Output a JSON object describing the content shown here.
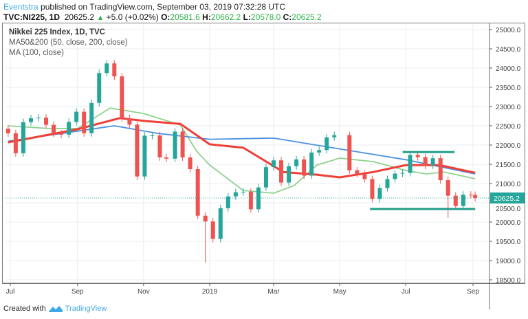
{
  "header": {
    "author": "Eventstra",
    "published": "published on TradingView.com, September 03, 2019 07:32:28 UTC",
    "symbol": "TVC:NI225, 1D",
    "last": "20625.2",
    "change": "+5.0 (+0.02%)",
    "o_label": "O:",
    "o": "20581.6",
    "h_label": "H:",
    "h": "20662.2",
    "l_label": "L:",
    "l": "20578.0",
    "c_label": "C:",
    "c": "20625.2"
  },
  "legend": {
    "title": "Nikkei 225 Index, 1D, TVC",
    "ma1": "MA50&200 (50, close, 200, close)",
    "ma2": "MA (100, close)"
  },
  "footer": {
    "created": "Created with",
    "brand": "TradingView"
  },
  "colors": {
    "up": "#26a69a",
    "down": "#ef5350",
    "ma50": "#8fd18c",
    "ma200": "#4a90e2",
    "ma100": "#ef3e36",
    "lines": "#1e9e86"
  },
  "chart_data": {
    "type": "candlestick",
    "interval": "1D (shown as approximate weekly closes)",
    "price_axis": {
      "min": 18500,
      "max": 25000,
      "step": 500,
      "labels": [
        "25000.0",
        "24500.0",
        "24000.0",
        "23500.0",
        "23000.0",
        "22500.0",
        "22000.0",
        "21500.0",
        "21000.0",
        "20500.0",
        "20000.0",
        "19500.0",
        "19000.0",
        "18500.0"
      ]
    },
    "time_axis": {
      "labels": [
        {
          "label": "Jul",
          "date": "2018-07-01"
        },
        {
          "label": "Sep",
          "date": "2018-09-01"
        },
        {
          "label": "Nov",
          "date": "2018-11-01"
        },
        {
          "label": "2019",
          "date": "2019-01-01"
        },
        {
          "label": "Mar",
          "date": "2019-03-01"
        },
        {
          "label": "May",
          "date": "2019-05-01"
        },
        {
          "label": "Jul",
          "date": "2019-07-01"
        },
        {
          "label": "Sep",
          "date": "2019-09-01"
        }
      ]
    },
    "current_price": "20625.2",
    "dates": [
      "2018-06-29",
      "2018-07-06",
      "2018-07-13",
      "2018-07-20",
      "2018-07-27",
      "2018-08-03",
      "2018-08-10",
      "2018-08-17",
      "2018-08-24",
      "2018-08-31",
      "2018-09-07",
      "2018-09-14",
      "2018-09-21",
      "2018-09-28",
      "2018-10-05",
      "2018-10-12",
      "2018-10-19",
      "2018-10-26",
      "2018-11-02",
      "2018-11-09",
      "2018-11-16",
      "2018-11-22",
      "2018-11-30",
      "2018-12-07",
      "2018-12-14",
      "2018-12-21",
      "2018-12-28",
      "2019-01-04",
      "2019-01-11",
      "2019-01-18",
      "2019-01-25",
      "2019-02-01",
      "2019-02-08",
      "2019-02-15",
      "2019-02-22",
      "2019-03-01",
      "2019-03-08",
      "2019-03-15",
      "2019-03-22",
      "2019-03-29",
      "2019-04-05",
      "2019-04-12",
      "2019-04-19",
      "2019-04-26",
      "2019-05-10",
      "2019-05-17",
      "2019-05-24",
      "2019-05-31",
      "2019-06-07",
      "2019-06-14",
      "2019-06-21",
      "2019-06-28",
      "2019-07-05",
      "2019-07-12",
      "2019-07-19",
      "2019-07-26",
      "2019-08-02",
      "2019-08-09",
      "2019-08-16",
      "2019-08-23",
      "2019-08-30",
      "2019-09-03"
    ],
    "close": [
      22305,
      21788,
      22597,
      22697,
      22712,
      22525,
      22298,
      22270,
      22601,
      22865,
      22307,
      23094,
      23870,
      24120,
      23784,
      22694,
      22532,
      21184,
      22243,
      22250,
      21680,
      21647,
      22351,
      21679,
      21375,
      20166,
      20015,
      19562,
      20360,
      20666,
      20774,
      20788,
      20333,
      20900,
      21426,
      21603,
      21026,
      21451,
      21627,
      21206,
      21807,
      21870,
      22200,
      22259,
      21344,
      21250,
      21117,
      20601,
      20885,
      21117,
      21259,
      21276,
      21746,
      21686,
      21467,
      21658,
      21087,
      20685,
      20418,
      20711,
      20704,
      20625
    ],
    "lows_extreme": [
      {
        "date": "2018-12-26",
        "value": 18948
      },
      {
        "date": "2019-08-06",
        "value": 20110
      }
    ],
    "indicators": {
      "ma200": {
        "dates": [
          "2018-06-29",
          "2018-10-05",
          "2018-11-15",
          "2019-01-01",
          "2019-03-01",
          "2019-05-01",
          "2019-07-01",
          "2019-09-03"
        ],
        "values": [
          22100,
          22500,
          22300,
          22150,
          22180,
          21900,
          21620,
          21250
        ]
      },
      "ma100": {
        "dates": [
          "2018-06-29",
          "2018-09-01",
          "2018-10-10",
          "2018-11-01",
          "2018-12-05",
          "2019-01-01",
          "2019-02-01",
          "2019-03-10",
          "2019-04-10",
          "2019-05-01",
          "2019-06-01",
          "2019-07-01",
          "2019-08-01",
          "2019-09-03"
        ],
        "values": [
          22070,
          22410,
          22700,
          22630,
          22550,
          22020,
          21930,
          21300,
          21230,
          21160,
          21300,
          21480,
          21480,
          21280
        ]
      },
      "ma50": {
        "dates": [
          "2018-06-29",
          "2018-08-05",
          "2018-09-01",
          "2018-10-01",
          "2018-11-01",
          "2018-12-05",
          "2018-12-20",
          "2019-01-01",
          "2019-02-01",
          "2019-03-01",
          "2019-03-20",
          "2019-04-10",
          "2019-05-01",
          "2019-06-01",
          "2019-07-01",
          "2019-07-20",
          "2019-08-05",
          "2019-09-03"
        ],
        "values": [
          22500,
          22430,
          22430,
          22960,
          22820,
          22520,
          21840,
          21480,
          20820,
          20750,
          20950,
          21480,
          21660,
          21570,
          21340,
          21250,
          21300,
          21125
        ]
      }
    },
    "drawings": [
      {
        "type": "horizontal-line",
        "value": 21820,
        "from": "2019-06-28",
        "to": "2019-08-15"
      },
      {
        "type": "horizontal-line",
        "value": 20340,
        "from": "2019-05-29",
        "to": "2019-09-03"
      }
    ],
    "grid": true
  }
}
